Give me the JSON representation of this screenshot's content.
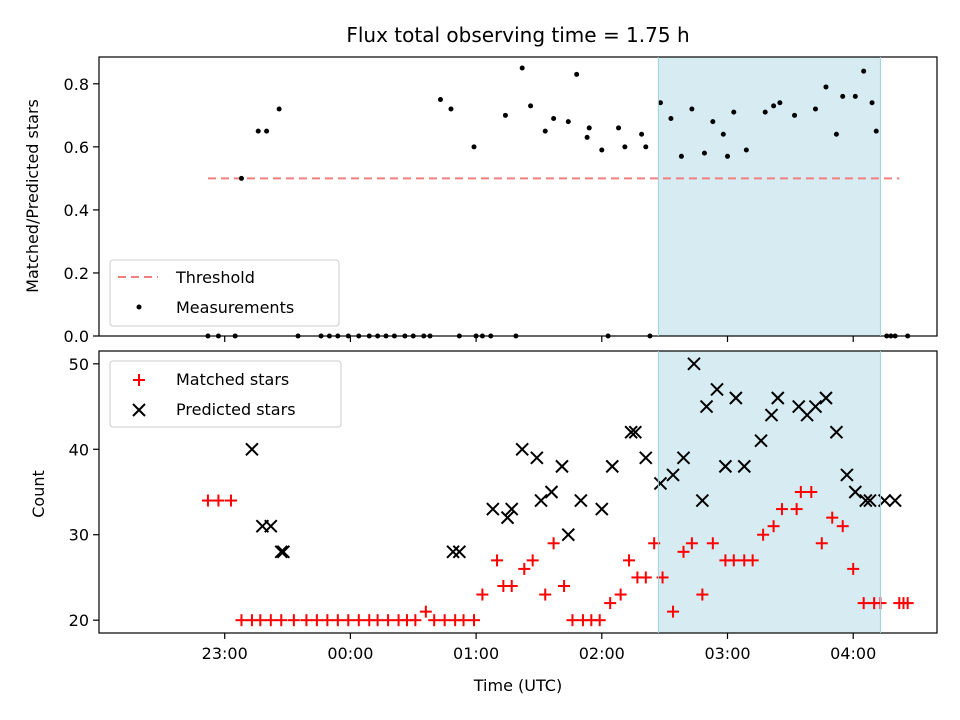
{
  "chart_data": [
    {
      "type": "scatter",
      "title": "Flux total observing time = 1.75 h",
      "xlabel": "",
      "ylabel": "Matched/Predicted stars",
      "ylim": [
        0,
        0.885
      ],
      "yticks": [
        0.0,
        0.2,
        0.4,
        0.6,
        0.8
      ],
      "ytick_labels": [
        "0.0",
        "0.2",
        "0.4",
        "0.6",
        "0.8"
      ],
      "xlim": [
        "22:00",
        "04:40"
      ],
      "shaded_interval": [
        "02:27",
        "04:13"
      ],
      "shaded_color": "#add8e6",
      "legend_position": "lower-left",
      "series": [
        {
          "name": "Threshold",
          "style": "dashed-line",
          "color": "#f08080",
          "x": [
            "22:52",
            "04:22"
          ],
          "y": [
            0.5,
            0.5
          ]
        },
        {
          "name": "Measurements",
          "style": "dot",
          "color": "#000000",
          "x": [
            "22:52",
            "22:57",
            "23:05",
            "23:08",
            "23:16",
            "23:20",
            "23:26",
            "23:35",
            "23:46",
            "23:50",
            "23:54",
            "23:59",
            "00:04",
            "00:09",
            "00:13",
            "00:17",
            "00:21",
            "00:26",
            "00:30",
            "00:35",
            "00:38",
            "00:43",
            "00:48",
            "00:52",
            "00:59",
            "01:00",
            "01:03",
            "01:07",
            "01:14",
            "01:19",
            "01:22",
            "01:26",
            "01:33",
            "01:37",
            "01:44",
            "01:48",
            "01:53",
            "01:54",
            "02:00",
            "02:03",
            "02:08",
            "02:11",
            "02:19",
            "02:21",
            "02:23",
            "02:28",
            "02:33",
            "02:38",
            "02:43",
            "02:49",
            "02:53",
            "02:58",
            "03:00",
            "03:03",
            "03:09",
            "03:18",
            "03:22",
            "03:25",
            "03:32",
            "03:42",
            "03:47",
            "03:52",
            "03:55",
            "04:01",
            "04:05",
            "04:09",
            "04:11",
            "04:16",
            "04:18",
            "04:20",
            "04:26"
          ],
          "y": [
            0.0,
            0.0,
            0.0,
            0.5,
            0.65,
            0.65,
            0.72,
            0.0,
            0.0,
            0.0,
            0.0,
            0.0,
            0.0,
            0.0,
            0.0,
            0.0,
            0.0,
            0.0,
            0.0,
            0.0,
            0.0,
            0.75,
            0.72,
            0.0,
            0.6,
            0.0,
            0.0,
            0.0,
            0.7,
            0.0,
            0.85,
            0.73,
            0.65,
            0.69,
            0.68,
            0.83,
            0.63,
            0.66,
            0.59,
            0.0,
            0.66,
            0.6,
            0.64,
            0.6,
            0.0,
            0.74,
            0.69,
            0.57,
            0.72,
            0.58,
            0.68,
            0.64,
            0.57,
            0.71,
            0.59,
            0.71,
            0.73,
            0.74,
            0.7,
            0.72,
            0.79,
            0.64,
            0.76,
            0.76,
            0.84,
            0.74,
            0.65,
            0.0,
            0.0,
            0.0,
            0.0
          ]
        }
      ]
    },
    {
      "type": "scatter",
      "title": "",
      "xlabel": "Time (UTC)",
      "ylabel": "Count",
      "ylim": [
        18.5,
        51.5
      ],
      "yticks": [
        20,
        30,
        40,
        50
      ],
      "ytick_labels": [
        "20",
        "30",
        "40",
        "50"
      ],
      "xlim": [
        "22:00",
        "04:40"
      ],
      "xticks": [
        "23:00",
        "00:00",
        "01:00",
        "02:00",
        "03:00",
        "04:00"
      ],
      "shaded_interval": [
        "02:27",
        "04:13"
      ],
      "shaded_color": "#add8e6",
      "legend_position": "upper-left",
      "series": [
        {
          "name": "Matched stars",
          "style": "plus",
          "color": "#ff0000",
          "x": [
            "22:52",
            "22:57",
            "23:03",
            "23:08",
            "23:13",
            "23:17",
            "23:22",
            "23:27",
            "23:33",
            "23:39",
            "23:44",
            "23:49",
            "23:54",
            "23:59",
            "00:04",
            "00:09",
            "00:13",
            "00:18",
            "00:23",
            "00:27",
            "00:31",
            "00:36",
            "00:40",
            "00:45",
            "00:50",
            "00:54",
            "00:59",
            "01:03",
            "01:10",
            "01:13",
            "01:17",
            "01:23",
            "01:27",
            "01:33",
            "01:37",
            "01:42",
            "01:46",
            "01:51",
            "01:55",
            "01:59",
            "02:04",
            "02:09",
            "02:13",
            "02:17",
            "02:21",
            "02:25",
            "02:29",
            "02:34",
            "02:39",
            "02:43",
            "02:48",
            "02:53",
            "02:59",
            "03:03",
            "03:08",
            "03:12",
            "03:17",
            "03:22",
            "03:26",
            "03:33",
            "03:35",
            "03:40",
            "03:45",
            "03:50",
            "03:55",
            "04:00",
            "04:05",
            "04:10",
            "04:13",
            "04:22",
            "04:24",
            "04:26"
          ],
          "y": [
            34,
            34,
            34,
            20,
            20,
            20,
            20,
            20,
            20,
            20,
            20,
            20,
            20,
            20,
            20,
            20,
            20,
            20,
            20,
            20,
            20,
            21,
            20,
            20,
            20,
            20,
            20,
            23,
            27,
            24,
            24,
            26,
            27,
            23,
            29,
            24,
            20,
            20,
            20,
            20,
            22,
            23,
            27,
            25,
            25,
            29,
            25,
            21,
            28,
            29,
            23,
            29,
            27,
            27,
            27,
            27,
            30,
            31,
            33,
            33,
            35,
            35,
            29,
            32,
            31,
            26,
            22,
            22,
            22,
            22,
            22,
            22
          ]
        },
        {
          "name": "Predicted stars",
          "style": "x",
          "color": "#000000",
          "x": [
            "23:13",
            "23:18",
            "23:22",
            "23:28",
            "23:27",
            "00:49",
            "00:52",
            "01:08",
            "01:15",
            "01:17",
            "01:22",
            "01:29",
            "01:31",
            "01:36",
            "01:41",
            "01:44",
            "01:50",
            "02:00",
            "02:05",
            "02:14",
            "02:16",
            "02:21",
            "02:28",
            "02:34",
            "02:39",
            "02:44",
            "02:48",
            "02:50",
            "02:55",
            "02:59",
            "03:04",
            "03:08",
            "03:16",
            "03:21",
            "03:24",
            "03:34",
            "03:38",
            "03:42",
            "03:47",
            "03:52",
            "03:57",
            "04:01",
            "04:06",
            "04:08",
            "04:15",
            "04:20"
          ],
          "y": [
            40,
            31,
            31,
            28,
            28,
            28,
            28,
            33,
            32,
            33,
            40,
            39,
            34,
            35,
            38,
            30,
            34,
            33,
            38,
            42,
            42,
            39,
            36,
            37,
            39,
            50,
            34,
            45,
            47,
            38,
            46,
            38,
            41,
            44,
            46,
            45,
            44,
            45,
            46,
            42,
            37,
            35,
            34,
            34,
            34,
            34
          ]
        }
      ]
    }
  ]
}
